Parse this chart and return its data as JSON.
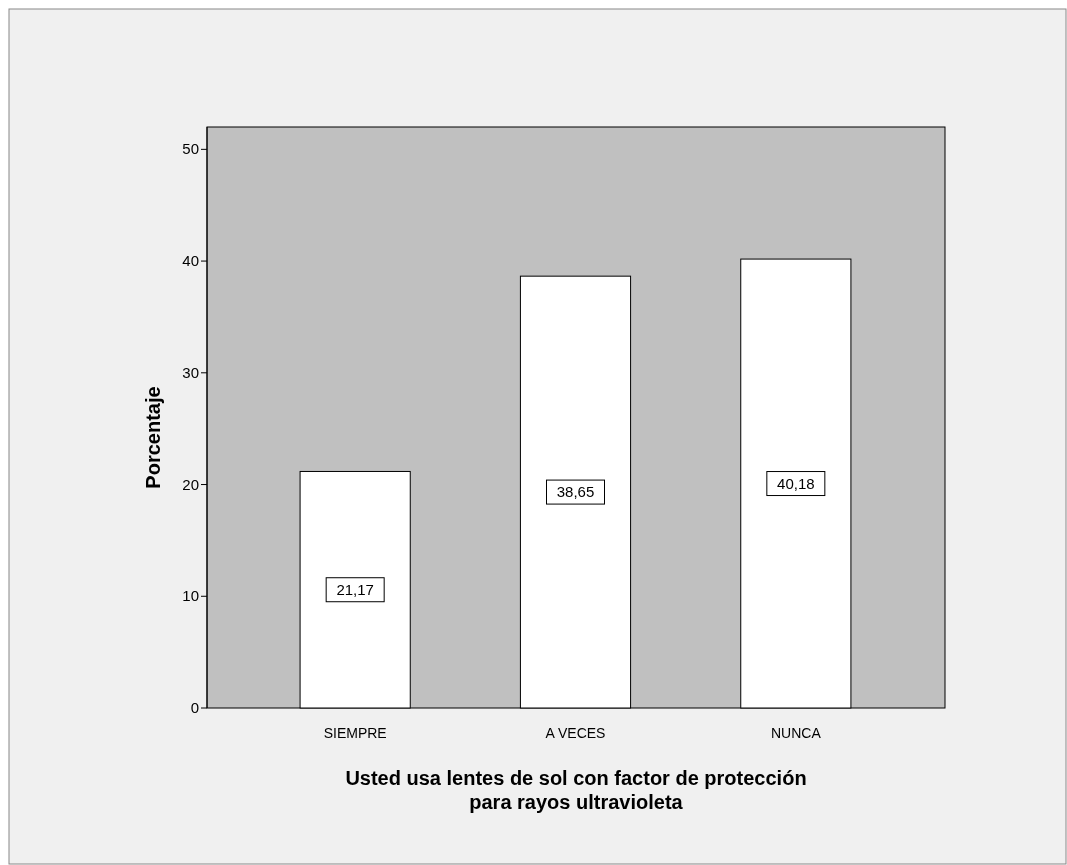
{
  "chart_data": {
    "type": "bar",
    "xlabel": "Usted usa lentes de sol con factor de protección para rayos ultravioleta",
    "ylabel": "Porcentaje",
    "categories": [
      "SIEMPRE",
      "A VECES",
      "NUNCA"
    ],
    "values": [
      21.17,
      38.65,
      40.18
    ],
    "value_labels": [
      "21,17",
      "38,65",
      "40,18"
    ],
    "color": "#ffffff",
    "ylim": [
      0,
      52
    ],
    "yticks": [
      0,
      10,
      20,
      30,
      40,
      50
    ],
    "grid": false
  }
}
